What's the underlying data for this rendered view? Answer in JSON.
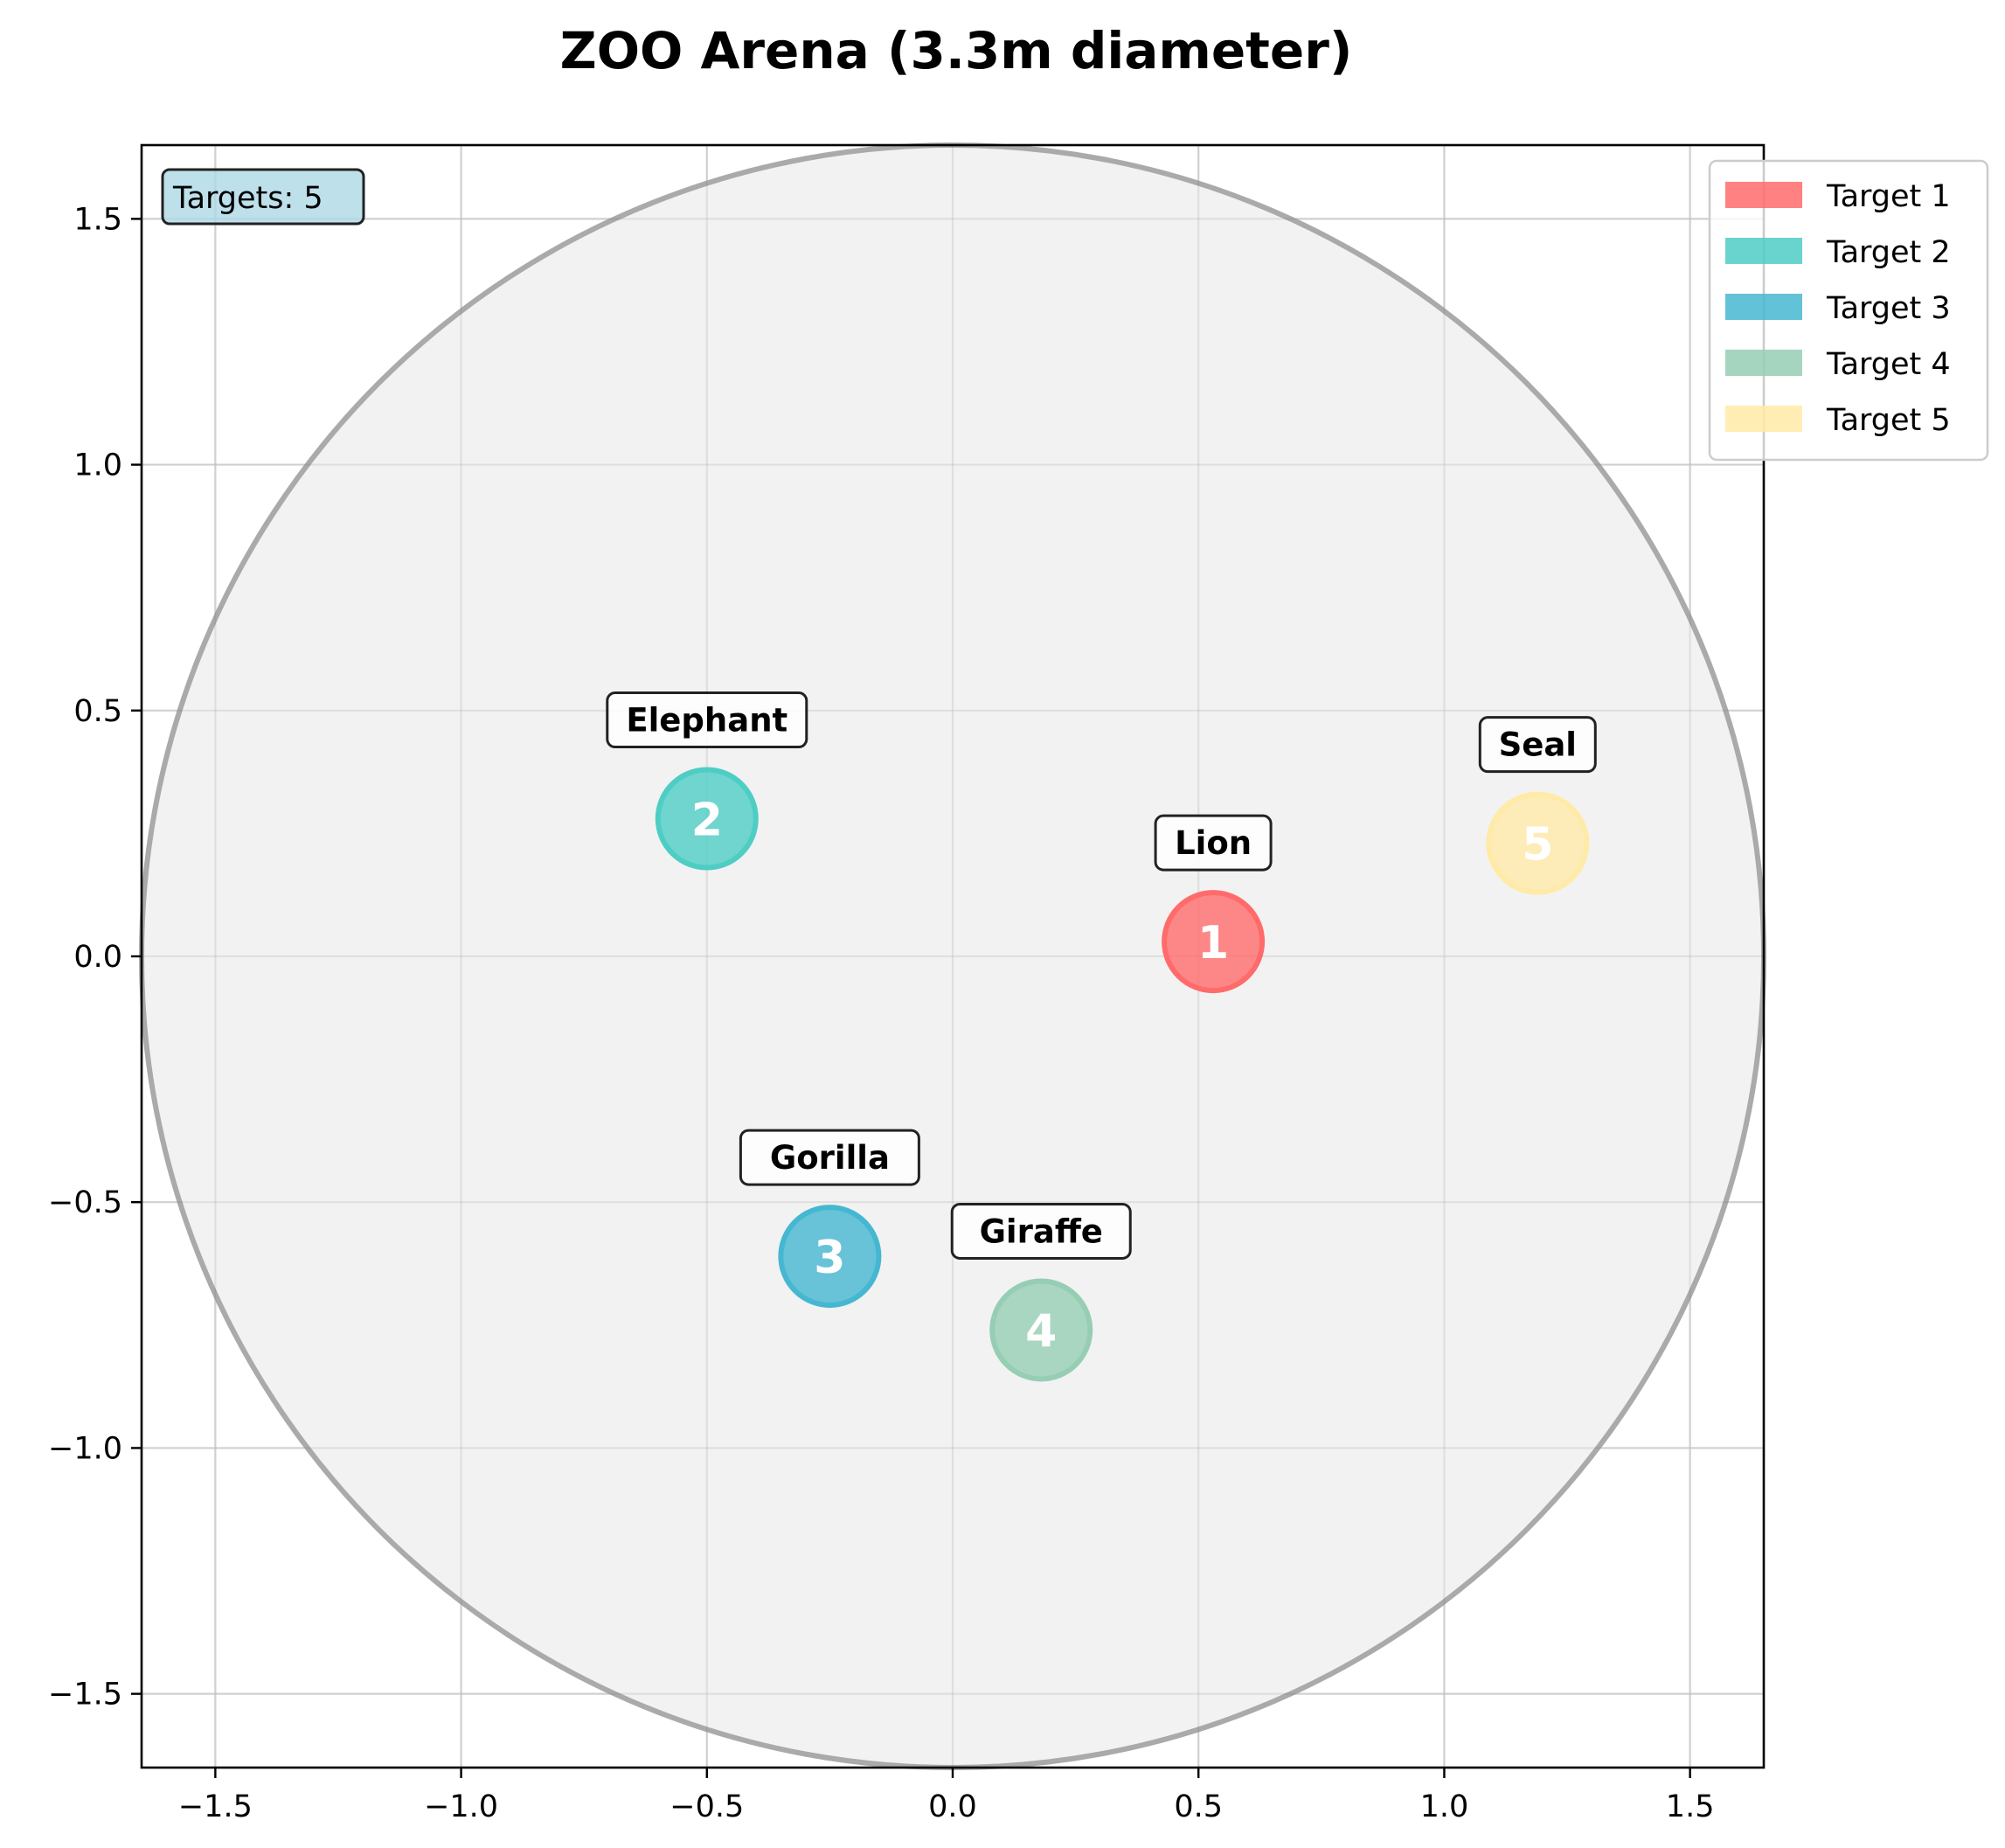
{
  "chart_data": {
    "type": "scatter",
    "title": "ZOO Arena (3.3m diameter)",
    "xlabel": "",
    "ylabel": "",
    "xlim": [
      -1.65,
      1.65
    ],
    "ylim": [
      -1.65,
      1.65
    ],
    "grid": true,
    "x_ticks": [
      -1.5,
      -1.0,
      -0.5,
      0.0,
      0.5,
      1.0,
      1.5
    ],
    "y_ticks": [
      -1.5,
      -1.0,
      -0.5,
      0.0,
      0.5,
      1.0,
      1.5
    ],
    "x_tick_labels": [
      "−1.5",
      "−1.0",
      "−0.5",
      "0.0",
      "0.5",
      "1.0",
      "1.5"
    ],
    "y_tick_labels": [
      "−1.5",
      "−1.0",
      "−0.5",
      "0.0",
      "0.5",
      "1.0",
      "1.5"
    ],
    "arena": {
      "center": [
        0,
        0
      ],
      "diameter": 3.3,
      "fill": "#f0f0f0",
      "edge": "#aaaaaa"
    },
    "counter_label": "Targets: 5",
    "legend_position": "top-right",
    "targets": [
      {
        "number": "1",
        "name": "Target 1",
        "animal": "Lion",
        "x": 0.53,
        "y": 0.03,
        "color": "#ff6b6b"
      },
      {
        "number": "2",
        "name": "Target 2",
        "animal": "Elephant",
        "x": -0.5,
        "y": 0.28,
        "color": "#4ecdc4"
      },
      {
        "number": "3",
        "name": "Target 3",
        "animal": "Gorilla",
        "x": -0.25,
        "y": -0.61,
        "color": "#45b7d1"
      },
      {
        "number": "4",
        "name": "Target 4",
        "animal": "Giraffe",
        "x": 0.18,
        "y": -0.76,
        "color": "#96ceb4"
      },
      {
        "number": "5",
        "name": "Target 5",
        "animal": "Seal",
        "x": 1.19,
        "y": 0.23,
        "color": "#ffeaa7"
      }
    ]
  }
}
